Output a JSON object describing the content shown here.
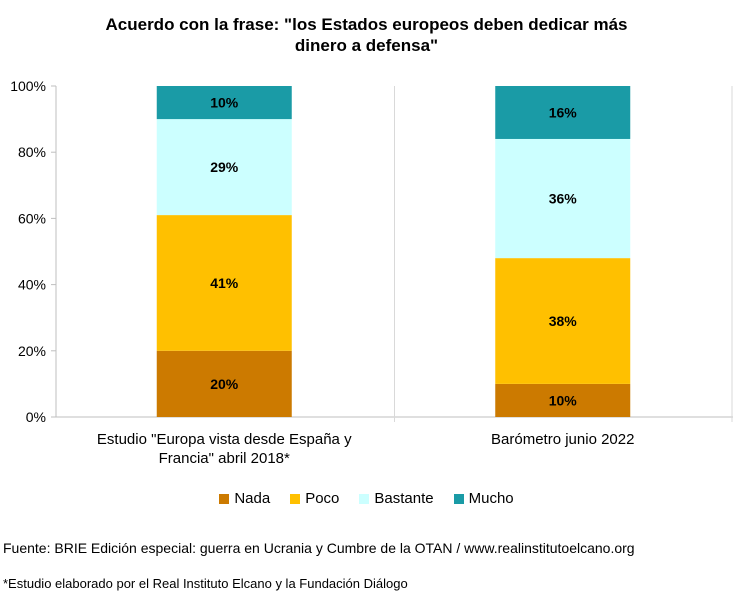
{
  "chart_data": {
    "type": "bar",
    "stacked": true,
    "title_lines": [
      "Acuerdo con la frase: \"los Estados europeos deben dedicar más",
      "dinero a defensa\""
    ],
    "categories": [
      [
        "Estudio \"Europa vista desde España y",
        "Francia\" abril 2018*"
      ],
      [
        "Barómetro junio 2022"
      ]
    ],
    "series": [
      {
        "name": "Nada",
        "color": "#cc7a00",
        "values": [
          20,
          10
        ],
        "labels": [
          "20%",
          "10%"
        ]
      },
      {
        "name": "Poco",
        "color": "#ffc000",
        "values": [
          41,
          38
        ],
        "labels": [
          "41%",
          "38%"
        ]
      },
      {
        "name": "Bastante",
        "color": "#ccffff",
        "values": [
          29,
          36
        ],
        "labels": [
          "29%",
          "36%"
        ]
      },
      {
        "name": "Mucho",
        "color": "#1a9ba6",
        "values": [
          10,
          16
        ],
        "labels": [
          "10%",
          "16%"
        ]
      }
    ],
    "yticks": [
      "0%",
      "20%",
      "40%",
      "60%",
      "80%",
      "100%"
    ],
    "ylim": [
      0,
      100
    ],
    "legend_position": "bottom",
    "grid": false
  },
  "source": "Fuente: BRIE Edición especial: guerra en Ucrania y Cumbre de la OTAN / www.realinstitutoelcano.org",
  "footnote": "*Estudio elaborado por el Real Instituto Elcano y la Fundación Diálogo"
}
